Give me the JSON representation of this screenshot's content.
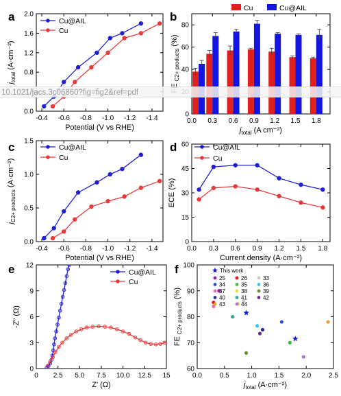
{
  "colors": {
    "cu_al": "#1f1fd6",
    "cu": "#e83a3a",
    "bar_cu": "#e0201e",
    "bar_cu_al": "#1414e0"
  },
  "watermark": {
    "url": "10.1021/jacs.3c06860?fig=fig2&ref=pdf"
  },
  "chart_data": [
    {
      "id": "a",
      "letter": "a",
      "type": "line",
      "xlabel": "Potential (V vs RHE)",
      "ylabel": "j_total (A·cm⁻²)",
      "xlim": [
        -0.35,
        -1.5
      ],
      "ylim": [
        0,
        2.0
      ],
      "xticks": [
        -0.4,
        -0.6,
        -0.8,
        -1.0,
        -1.2,
        -1.4
      ],
      "yticks": [
        0.0,
        0.4,
        0.8,
        1.2,
        1.6,
        2.0
      ],
      "xtick_labels": [
        "-0.4",
        "-0.6",
        "-0.8",
        "-1.0",
        "-1.2",
        "-1.4"
      ],
      "ytick_labels": [
        "0.0",
        "0.4",
        "0.8",
        "1.2",
        "1.6",
        "2.0"
      ],
      "legend": "top-left",
      "series": [
        {
          "name": "Cu@AIL",
          "color": "#1f1fd6",
          "x": [
            -0.42,
            -0.51,
            -0.6,
            -0.73,
            -0.9,
            -1.02,
            -1.13,
            -1.3
          ],
          "y": [
            0.1,
            0.3,
            0.6,
            0.9,
            1.2,
            1.5,
            1.6,
            1.8
          ]
        },
        {
          "name": "Cu",
          "color": "#e83a3a",
          "x": [
            -0.5,
            -0.6,
            -0.7,
            -0.85,
            -1.0,
            -1.15,
            -1.3,
            -1.47
          ],
          "y": [
            0.1,
            0.3,
            0.6,
            0.9,
            1.2,
            1.5,
            1.6,
            1.8
          ]
        }
      ]
    },
    {
      "id": "b",
      "letter": "b",
      "type": "bar",
      "xlabel": "j_total (A cm⁻²)",
      "ylabel": "FE C2+ products (%)",
      "xlim": [
        0,
        2.0
      ],
      "ylim": [
        0,
        90
      ],
      "xticks": [
        0.0,
        0.3,
        0.6,
        0.9,
        1.2,
        1.5,
        1.8
      ],
      "yticks": [
        0,
        20,
        40,
        60,
        80
      ],
      "xtick_labels": [
        "0.0",
        "0.3",
        "0.6",
        "0.9",
        "1.2",
        "1.5",
        "1.8"
      ],
      "ytick_labels": [
        "0",
        "20",
        "40",
        "60",
        "80"
      ],
      "legend": "top",
      "categories": [
        0.1,
        0.3,
        0.6,
        0.9,
        1.2,
        1.5,
        1.8
      ],
      "series": [
        {
          "name": "Cu",
          "color": "#e0201e",
          "values": [
            38,
            54,
            57,
            58,
            56,
            51,
            50
          ],
          "errors": [
            3,
            3,
            4,
            1,
            3,
            1,
            1
          ]
        },
        {
          "name": "Cu@AIL",
          "color": "#1414e0",
          "values": [
            45,
            70,
            74,
            81,
            72,
            71,
            71
          ],
          "errors": [
            3,
            3,
            2,
            3,
            1,
            1,
            5
          ]
        }
      ]
    },
    {
      "id": "c",
      "letter": "c",
      "type": "line",
      "xlabel": "Potential (V vs RHE)",
      "ylabel": "j C2+ products (A·cm⁻²)",
      "xlim": [
        -0.35,
        -1.5
      ],
      "ylim": [
        0,
        1.5
      ],
      "xticks": [
        -0.4,
        -0.6,
        -0.8,
        -1.0,
        -1.2,
        -1.4
      ],
      "yticks": [
        0.0,
        0.5,
        1.0,
        1.5
      ],
      "xtick_labels": [
        "-0.4",
        "-0.6",
        "-0.8",
        "-1.0",
        "-1.2",
        "-1.4"
      ],
      "ytick_labels": [
        "0.0",
        "0.5",
        "1.0",
        "1.5"
      ],
      "legend": "top-left",
      "series": [
        {
          "name": "Cu@AIL",
          "color": "#1f1fd6",
          "x": [
            -0.42,
            -0.51,
            -0.6,
            -0.73,
            -0.9,
            -1.02,
            -1.13,
            -1.3
          ],
          "y": [
            0.05,
            0.2,
            0.45,
            0.73,
            0.88,
            1.0,
            1.08,
            1.29
          ]
        },
        {
          "name": "Cu",
          "color": "#e83a3a",
          "x": [
            -0.5,
            -0.6,
            -0.7,
            -0.85,
            -1.0,
            -1.15,
            -1.3,
            -1.47
          ],
          "y": [
            0.05,
            0.15,
            0.33,
            0.52,
            0.6,
            0.67,
            0.8,
            0.9
          ]
        }
      ]
    },
    {
      "id": "d",
      "letter": "d",
      "type": "line",
      "xlabel": "Current density (A·cm⁻²)",
      "ylabel": "ECE (%)",
      "xlim": [
        0,
        1.9
      ],
      "ylim": [
        0,
        60
      ],
      "xticks": [
        0.0,
        0.3,
        0.6,
        0.9,
        1.2,
        1.5,
        1.8
      ],
      "yticks": [
        0,
        15,
        30,
        45,
        60
      ],
      "xtick_labels": [
        "0.0",
        "0.3",
        "0.6",
        "0.9",
        "1.2",
        "1.5",
        "1.8"
      ],
      "ytick_labels": [
        "0",
        "15",
        "30",
        "45",
        "60"
      ],
      "legend": "top-left",
      "series": [
        {
          "name": "Cu@AIL",
          "color": "#1f1fd6",
          "x": [
            0.1,
            0.3,
            0.6,
            0.9,
            1.2,
            1.5,
            1.8
          ],
          "y": [
            32,
            46,
            47,
            47,
            39,
            35,
            32
          ]
        },
        {
          "name": "Cu",
          "color": "#e83a3a",
          "x": [
            0.1,
            0.3,
            0.6,
            0.9,
            1.2,
            1.5,
            1.8
          ],
          "y": [
            26,
            33,
            34,
            32,
            28,
            24,
            21
          ]
        }
      ]
    },
    {
      "id": "e",
      "letter": "e",
      "type": "line",
      "xlabel": "Z' (Ω)",
      "ylabel": "-Z\" (Ω)",
      "xlim": [
        0,
        15
      ],
      "ylim": [
        0,
        12
      ],
      "xticks": [
        0,
        2.5,
        5.0,
        7.5,
        10.0,
        12.5,
        15
      ],
      "yticks": [
        0,
        3,
        6,
        9,
        12
      ],
      "xtick_labels": [
        "0",
        "2.5",
        "5.0",
        "7.5",
        "10.0",
        "12.5",
        "15"
      ],
      "ytick_labels": [
        "0",
        "3",
        "6",
        "9",
        "12"
      ],
      "legend": "top-right",
      "series": [
        {
          "name": "Cu@AIL",
          "color": "#1f1fd6",
          "x": [
            1.2,
            1.4,
            1.6,
            1.75,
            1.85,
            1.95,
            2.05,
            2.15,
            2.3,
            2.45,
            2.6,
            2.75,
            2.9,
            3.05,
            3.2,
            3.35,
            3.5,
            3.65,
            3.8
          ],
          "y": [
            0.1,
            0.3,
            0.6,
            1.0,
            1.5,
            2.1,
            2.8,
            3.5,
            4.3,
            5.1,
            5.9,
            6.7,
            7.5,
            8.3,
            9.1,
            9.9,
            10.7,
            11.5,
            12.0
          ]
        },
        {
          "name": "Cu",
          "color": "#e83a3a",
          "x": [
            1.3,
            1.6,
            1.9,
            2.2,
            2.6,
            3.0,
            3.5,
            4.0,
            4.6,
            5.2,
            5.8,
            6.5,
            7.2,
            7.9,
            8.6,
            9.3,
            10.0,
            10.7,
            11.4,
            12.0,
            12.6,
            13.2,
            13.8,
            14.3,
            14.8
          ],
          "y": [
            0.3,
            0.8,
            1.3,
            1.9,
            2.5,
            3.0,
            3.5,
            3.9,
            4.3,
            4.55,
            4.75,
            4.85,
            4.9,
            4.85,
            4.75,
            4.55,
            4.3,
            4.0,
            3.6,
            3.3,
            3.0,
            2.85,
            2.8,
            2.85,
            3.0
          ]
        }
      ]
    },
    {
      "id": "f",
      "letter": "f",
      "type": "scatter",
      "xlabel": "j_total (A·cm⁻²)",
      "ylabel": "FE C2+ products (%)",
      "xlim": [
        0,
        2.5
      ],
      "ylim": [
        60,
        100
      ],
      "xticks": [
        0.0,
        0.5,
        1.0,
        1.5,
        2.0,
        2.5
      ],
      "yticks": [
        60,
        70,
        80,
        90,
        100
      ],
      "xtick_labels": [
        "0.0",
        "0.5",
        "1.0",
        "1.5",
        "2.0",
        "2.5"
      ],
      "ytick_labels": [
        "60",
        "70",
        "80",
        "90",
        "100"
      ],
      "legend": "top-left",
      "this_work": {
        "name": "This work",
        "color": "#1414e0",
        "points": [
          [
            0.9,
            81.5
          ],
          [
            1.8,
            71.5
          ]
        ]
      },
      "refs": [
        {
          "name": "25",
          "color": "#9b1aa0",
          "x": 0.4,
          "y": 90
        },
        {
          "name": "26",
          "color": "#d81a1a",
          "x": 0.3,
          "y": 85.5
        },
        {
          "name": "33",
          "color": "#c8c8c8",
          "x": 0.85,
          "y": 86
        },
        {
          "name": "34",
          "color": "#2a4fe0",
          "x": 1.55,
          "y": 78
        },
        {
          "name": "35",
          "color": "#3dbb3d",
          "x": 1.7,
          "y": 70
        },
        {
          "name": "36",
          "color": "#33c8e8",
          "x": 1.1,
          "y": 76.5
        },
        {
          "name": "37",
          "color": "#e865c8",
          "x": 0.3,
          "y": 84
        },
        {
          "name": "38",
          "color": "#e0e040",
          "x": 0.75,
          "y": 85
        },
        {
          "name": "39",
          "color": "#6a8a2a",
          "x": 0.9,
          "y": 66
        },
        {
          "name": "40",
          "color": "#2a2aa0",
          "x": 1.2,
          "y": 75
        },
        {
          "name": "41",
          "color": "#3aa0a0",
          "x": 0.65,
          "y": 80
        },
        {
          "name": "42",
          "color": "#6a2a8a",
          "x": 1.15,
          "y": 73.5
        },
        {
          "name": "43",
          "color": "#f0a030",
          "x": 2.4,
          "y": 78
        },
        {
          "name": "44",
          "color": "#b070e0",
          "x": 1.95,
          "y": 64.5
        }
      ]
    }
  ]
}
